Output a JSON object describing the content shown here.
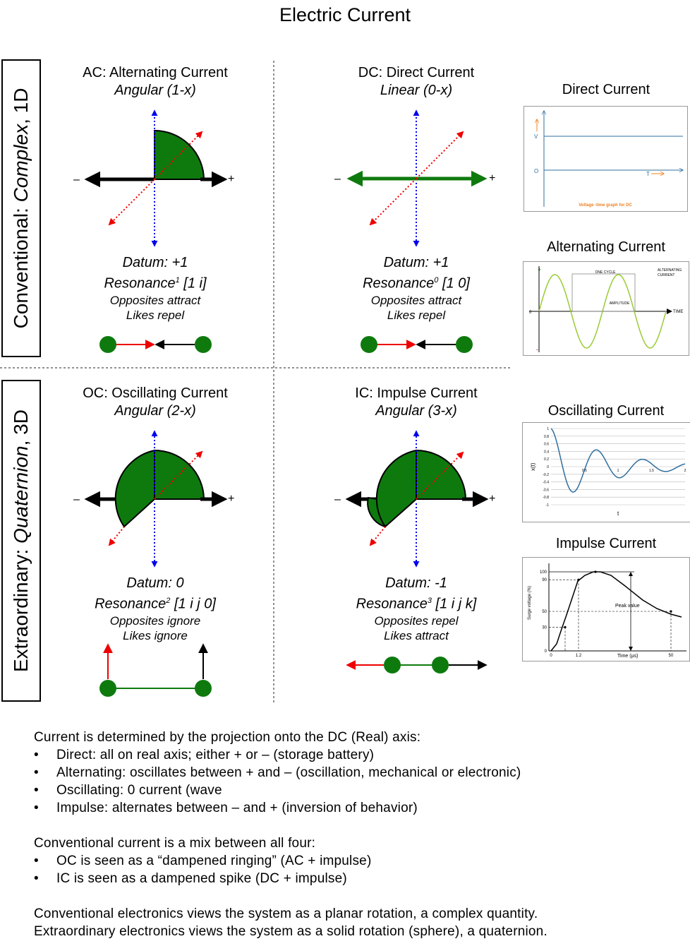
{
  "title": "Electric Current",
  "rows": [
    {
      "prefix": "Conventional: ",
      "emph": "Complex",
      "suffix": ", 1D"
    },
    {
      "prefix": "Extraordinary: ",
      "emph": "Quaternion",
      "suffix": ", 3D"
    }
  ],
  "quadrants": [
    {
      "name": "AC: Alternating Current",
      "sub": "Angular (1-x)",
      "datum": "Datum: +1",
      "res_word": "Resonance",
      "res_sup": "1",
      "res_vec": " [1 i]",
      "line1": "Opposites attract",
      "line2": "Likes repel"
    },
    {
      "name": "DC: Direct Current",
      "sub": "Linear (0-x)",
      "datum": "Datum: +1",
      "res_word": "Resonance",
      "res_sup": "0",
      "res_vec": " [1 0]",
      "line1": "Opposites attract",
      "line2": "Likes repel"
    },
    {
      "name": "OC: Oscillating Current",
      "sub": "Angular (2-x)",
      "datum": "Datum: 0",
      "res_word": "Resonance",
      "res_sup": "2",
      "res_vec": " [1 i j 0]",
      "line1": "Opposites ignore",
      "line2": "Likes ignore"
    },
    {
      "name": "IC: Impulse Current",
      "sub": "Angular (3-x)",
      "datum": "Datum: -1",
      "res_word": "Resonance",
      "res_sup": "3",
      "res_vec": " [1 i j k]",
      "line1": "Opposites repel",
      "line2": "Likes attract"
    }
  ],
  "axis_labels": {
    "minus": "–",
    "plus": "+"
  },
  "side": [
    {
      "title": "Direct Current"
    },
    {
      "title": "Alternating Current"
    },
    {
      "title": "Oscillating Current"
    },
    {
      "title": "Impulse Current"
    }
  ],
  "dc_graph": {
    "v_label": "V",
    "zero_label": "O",
    "t_label": "T",
    "caption": "Voltage -time graph for DC"
  },
  "ac_graph": {
    "plus": "+",
    "minus": "-",
    "zero": "0",
    "one_cycle": "ONE CYCLE",
    "amplitude": "AMPLITUDE",
    "time": "TIME",
    "legend_1": "ALTERNATING",
    "legend_2": "CURRENT"
  },
  "osc_graph": {
    "ylabel": "x(t)",
    "xlabel": "t",
    "yticks": [
      "1",
      "0.8",
      "0.6",
      "0.4",
      "0.2",
      "0",
      "-0.2",
      "-0.4",
      "-0.6",
      "-0.8",
      "-1"
    ],
    "xticks": [
      "0.5",
      "1",
      "1.5",
      "2"
    ]
  },
  "imp_graph": {
    "ylabel": "Surge voltage (%)",
    "xlabel": "Time (µs)",
    "peak": "Peak value",
    "yticks": [
      "100",
      "90",
      "50",
      "30",
      "0"
    ],
    "xticks": [
      "0",
      "1.2",
      "50"
    ]
  },
  "notes": {
    "p1": "Current is determined by the projection onto the DC (Real) axis:",
    "b1": [
      "Direct: all on real axis; either + or – (storage battery)",
      "Alternating: oscillates between + and – (oscillation, mechanical or electronic)",
      "Oscillating: 0 current (wave",
      "Impulse: alternates between – and + (inversion of behavior)"
    ],
    "p2": "Conventional current is a mix between all four:",
    "b2": [
      "OC is seen as a “dampened ringing” (AC + impulse)",
      "IC is seen as a dampened spike (DC + impulse)"
    ],
    "p3a": "Conventional electronics views the system as a planar rotation, a complex quantity.",
    "p3b": "Extraordinary electronics views the system as a solid rotation (sphere), a quaternion."
  },
  "colors": {
    "green": "#0e7a0e",
    "dark_green": "#0a6a0a",
    "blue": "#0000ee",
    "red": "#ee0000",
    "ac_wave": "#99cc33",
    "chart_line": "#2f6f9f",
    "dc_orange": "#f08020"
  }
}
